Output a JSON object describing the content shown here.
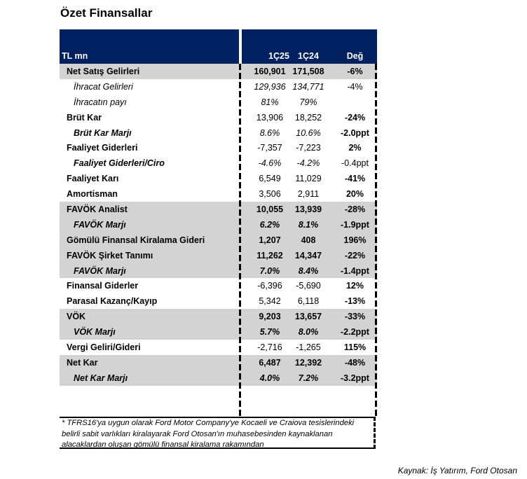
{
  "title": "Özet Finansallar",
  "header": {
    "label": "TL mn",
    "col1": "1Ç25",
    "col2": "1Ç24",
    "col3": "Değ"
  },
  "colors": {
    "header": "#002060",
    "highlight": "#d3d3d3"
  },
  "rows": [
    {
      "label": "Net Satış Gelirleri",
      "c1": "160,901",
      "c2": "171,508",
      "c3": "-6%",
      "gray": true,
      "kind": "main",
      "vstyle": "b",
      "cstyle": "b"
    },
    {
      "label": "İhracat Gelirleri",
      "c1": "129,936",
      "c2": "134,771",
      "c3": "-4%",
      "gray": false,
      "kind": "subit",
      "vstyle": "i",
      "cstyle": ""
    },
    {
      "label": "İhracatın payı",
      "c1": "81%",
      "c2": "79%",
      "c3": "",
      "gray": false,
      "kind": "subit",
      "vstyle": "i",
      "cstyle": ""
    },
    {
      "label": "Brüt Kar",
      "c1": "13,906",
      "c2": "18,252",
      "c3": "-24%",
      "gray": false,
      "kind": "main",
      "vstyle": "",
      "cstyle": "b"
    },
    {
      "label": "Brüt Kar Marjı",
      "c1": "8.6%",
      "c2": "10.6%",
      "c3": "-2.0ppt",
      "gray": false,
      "kind": "sub",
      "vstyle": "i",
      "cstyle": "b"
    },
    {
      "label": "Faaliyet Giderleri",
      "c1": "-7,357",
      "c2": "-7,223",
      "c3": "2%",
      "gray": false,
      "kind": "main",
      "vstyle": "",
      "cstyle": "b"
    },
    {
      "label": "Faaliyet Giderleri/Ciro",
      "c1": "-4.6%",
      "c2": "-4.2%",
      "c3": "-0.4ppt",
      "gray": false,
      "kind": "sub",
      "vstyle": "i",
      "cstyle": ""
    },
    {
      "label": "Faaliyet Karı",
      "c1": "6,549",
      "c2": "11,029",
      "c3": "-41%",
      "gray": false,
      "kind": "main",
      "vstyle": "",
      "cstyle": "b"
    },
    {
      "label": "Amortisman",
      "c1": "3,506",
      "c2": "2,911",
      "c3": "20%",
      "gray": false,
      "kind": "main",
      "vstyle": "",
      "cstyle": "b"
    },
    {
      "label": "FAVÖK Analist",
      "c1": "10,055",
      "c2": "13,939",
      "c3": "-28%",
      "gray": true,
      "kind": "main",
      "vstyle": "b",
      "cstyle": "b"
    },
    {
      "label": "FAVÖK Marjı",
      "c1": "6.2%",
      "c2": "8.1%",
      "c3": "-1.9ppt",
      "gray": true,
      "kind": "sub",
      "vstyle": "b i",
      "cstyle": "b"
    },
    {
      "label": "Gömülü Finansal Kiralama Gideri",
      "c1": "1,207",
      "c2": "408",
      "c3": "196%",
      "gray": true,
      "kind": "main",
      "vstyle": "b",
      "cstyle": "b"
    },
    {
      "label": "FAVÖK Şirket Tanımı",
      "c1": "11,262",
      "c2": "14,347",
      "c3": "-22%",
      "gray": true,
      "kind": "main",
      "vstyle": "b",
      "cstyle": "b"
    },
    {
      "label": "FAVÖK Marjı",
      "c1": "7.0%",
      "c2": "8.4%",
      "c3": "-1.4ppt",
      "gray": true,
      "kind": "sub",
      "vstyle": "b i",
      "cstyle": "b"
    },
    {
      "label": "Finansal Giderler",
      "c1": "-6,396",
      "c2": "-5,690",
      "c3": "12%",
      "gray": false,
      "kind": "main",
      "vstyle": "",
      "cstyle": "b"
    },
    {
      "label": "Parasal Kazanç/Kayıp",
      "c1": "5,342",
      "c2": "6,118",
      "c3": "-13%",
      "gray": false,
      "kind": "main",
      "vstyle": "",
      "cstyle": "b"
    },
    {
      "label": "VÖK",
      "c1": "9,203",
      "c2": "13,657",
      "c3": "-33%",
      "gray": true,
      "kind": "main",
      "vstyle": "b",
      "cstyle": "b"
    },
    {
      "label": "VÖK Marjı",
      "c1": "5.7%",
      "c2": "8.0%",
      "c3": "-2.2ppt",
      "gray": true,
      "kind": "sub",
      "vstyle": "b i",
      "cstyle": "b"
    },
    {
      "label": "Vergi Geliri/Gideri",
      "c1": "-2,716",
      "c2": "-1,265",
      "c3": "115%",
      "gray": false,
      "kind": "main",
      "vstyle": "",
      "cstyle": "b"
    },
    {
      "label": "Net Kar",
      "c1": "6,487",
      "c2": "12,392",
      "c3": "-48%",
      "gray": true,
      "kind": "main",
      "vstyle": "b",
      "cstyle": "b"
    },
    {
      "label": "Net Kar Marjı",
      "c1": "4.0%",
      "c2": "7.2%",
      "c3": "-3.2ppt",
      "gray": true,
      "kind": "sub",
      "vstyle": "b i",
      "cstyle": "b"
    }
  ],
  "footnote": "* TFRS16'ya uygun olarak Ford Motor Company'ye Kocaeli ve Craiova tesislerindeki belirli sabit varlıkları kiralayarak Ford Otosan'ın muhasebesinden kaynaklanan alacaklardan oluşan gömülü finansal kiralama rakamından",
  "source": "Kaynak: İş Yatırım, Ford Otosan"
}
